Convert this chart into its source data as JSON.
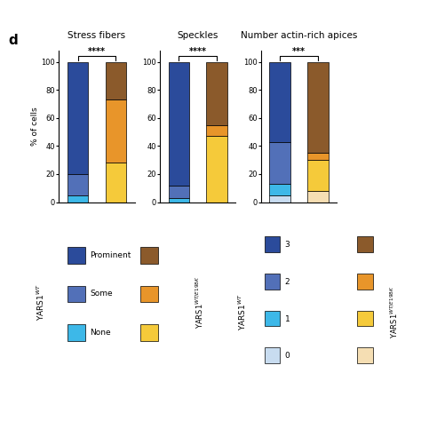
{
  "stress_fibers": {
    "WT": {
      "Prominent": 80,
      "Some": 15,
      "None": 5
    },
    "MUT": {
      "Prominent": 27,
      "Some": 45,
      "None": 28
    }
  },
  "speckles": {
    "WT": {
      "Prominent": 88,
      "Some": 9,
      "None": 3
    },
    "MUT": {
      "Prominent": 45,
      "Some": 8,
      "None": 47
    }
  },
  "actin_apices": {
    "WT": {
      "3": 57,
      "2": 30,
      "1": 8,
      "0": 5
    },
    "MUT": {
      "3": 65,
      "2": 5,
      "1": 22,
      "0": 8
    }
  },
  "colors": {
    "WT_prominent": "#2B4B9B",
    "WT_some": "#5270B8",
    "WT_none": "#3DB8E8",
    "MUT_prominent": "#8B5A2B",
    "MUT_some": "#E8952A",
    "MUT_none": "#F5CA3A",
    "WT_3": "#2B4B9B",
    "WT_2": "#5270B8",
    "WT_1": "#3DB8E8",
    "WT_0": "#C8DCF0",
    "MUT_3": "#8B5A2B",
    "MUT_2": "#E8952A",
    "MUT_1": "#F5CA3A",
    "MUT_0": "#F5DEB3"
  },
  "sig_stress": "****",
  "sig_speckles": "****",
  "sig_apices": "***",
  "ylabel": "% of cells",
  "panel_label": "d",
  "subplot_titles": [
    "Stress fibers",
    "Speckles",
    "Number actin-rich apices"
  ]
}
